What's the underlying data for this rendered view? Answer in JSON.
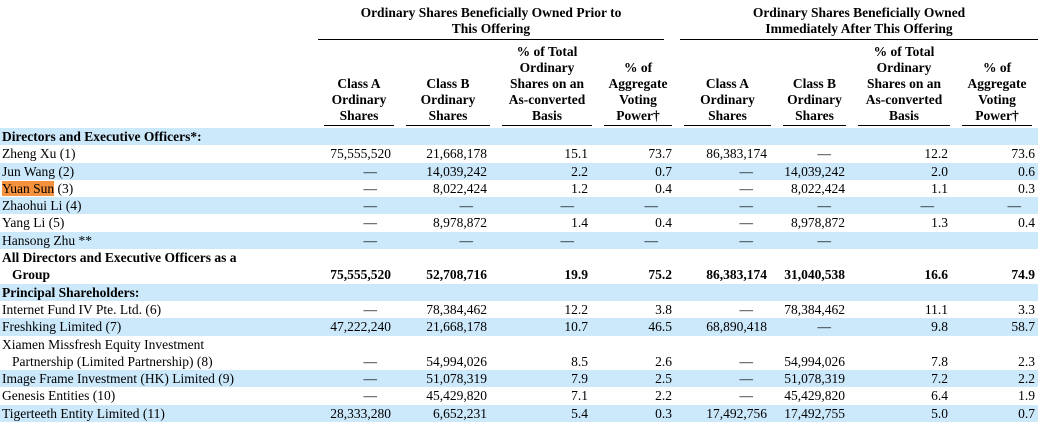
{
  "colors": {
    "stripe": "#cce9fc",
    "highlight": "#f6913d",
    "rule": "#000000"
  },
  "header": {
    "groups": [
      {
        "title": "Ordinary Shares Beneficially Owned Prior to\nThis Offering"
      },
      {
        "title": "Ordinary Shares Beneficially Owned\nImmediately After This Offering"
      }
    ],
    "columns": [
      "Class A\nOrdinary\nShares",
      "Class B\nOrdinary\nShares",
      "% of Total\nOrdinary\nShares on an\nAs-converted\nBasis",
      "% of\nAggregate\nVoting\nPower†",
      "Class A\nOrdinary\nShares",
      "Class B\nOrdinary\nShares",
      "% of Total\nOrdinary\nShares on an\nAs-converted\nBasis",
      "% of\nAggregate\nVoting\nPower†"
    ]
  },
  "rows": [
    {
      "type": "section",
      "shaded": true,
      "label": "Directors and Executive Officers*:"
    },
    {
      "type": "data",
      "shaded": false,
      "name": "Zheng Xu (1)",
      "values": [
        "75,555,520",
        "21,668,178",
        "15.1",
        "73.7",
        "86,383,174",
        "—",
        "12.2",
        "73.6"
      ]
    },
    {
      "type": "data",
      "shaded": true,
      "name": "Jun Wang (2)",
      "values": [
        "—",
        "14,039,242",
        "2.2",
        "0.7",
        "—",
        "14,039,242",
        "2.0",
        "0.6"
      ]
    },
    {
      "type": "data",
      "shaded": false,
      "name": "Yuan Sun",
      "name_suffix": " (3)",
      "highlight": true,
      "values": [
        "—",
        "8,022,424",
        "1.2",
        "0.4",
        "—",
        "8,022,424",
        "1.1",
        "0.3"
      ]
    },
    {
      "type": "data",
      "shaded": true,
      "name": "Zhaohui Li (4)",
      "values": [
        "—",
        "—",
        "—",
        "—",
        "—",
        "—",
        "—",
        "—"
      ]
    },
    {
      "type": "data",
      "shaded": false,
      "name": "Yang Li (5)",
      "values": [
        "—",
        "8,978,872",
        "1.4",
        "0.4",
        "—",
        "8,978,872",
        "1.3",
        "0.4"
      ]
    },
    {
      "type": "data",
      "shaded": true,
      "name": "Hansong Zhu **",
      "values": [
        "—",
        "—",
        "—",
        "—",
        "—",
        "—",
        "",
        ""
      ]
    },
    {
      "type": "data",
      "shaded": false,
      "bold": true,
      "name": "All Directors and Executive Officers as a",
      "name_line2": "Group",
      "values": [
        "75,555,520",
        "52,708,716",
        "19.9",
        "75.2",
        "86,383,174",
        "31,040,538",
        "16.6",
        "74.9"
      ]
    },
    {
      "type": "section",
      "shaded": true,
      "label": "Principal Shareholders:"
    },
    {
      "type": "data",
      "shaded": false,
      "name": "Internet Fund IV Pte. Ltd. (6)",
      "values": [
        "—",
        "78,384,462",
        "12.2",
        "3.8",
        "—",
        "78,384,462",
        "11.1",
        "3.3"
      ]
    },
    {
      "type": "data",
      "shaded": true,
      "name": "Freshking Limited (7)",
      "values": [
        "47,222,240",
        "21,668,178",
        "10.7",
        "46.5",
        "68,890,418",
        "—",
        "9.8",
        "58.7"
      ]
    },
    {
      "type": "data",
      "shaded": false,
      "name": "Xiamen Missfresh Equity Investment",
      "name_line2": "Partnership (Limited Partnership) (8)",
      "values": [
        "—",
        "54,994,026",
        "8.5",
        "2.6",
        "—",
        "54,994,026",
        "7.8",
        "2.3"
      ]
    },
    {
      "type": "data",
      "shaded": true,
      "name": "Image Frame Investment (HK) Limited (9)",
      "values": [
        "—",
        "51,078,319",
        "7.9",
        "2.5",
        "—",
        "51,078,319",
        "7.2",
        "2.2"
      ]
    },
    {
      "type": "data",
      "shaded": false,
      "name": "Genesis Entities (10)",
      "values": [
        "—",
        "45,429,820",
        "7.1",
        "2.2",
        "—",
        "45,429,820",
        "6.4",
        "1.9"
      ]
    },
    {
      "type": "data",
      "shaded": true,
      "name": "Tigerteeth Entity Limited (11)",
      "values": [
        "28,333,280",
        "6,652,231",
        "5.4",
        "0.3",
        "17,492,756",
        "17,492,755",
        "5.0",
        "0.7"
      ]
    }
  ]
}
